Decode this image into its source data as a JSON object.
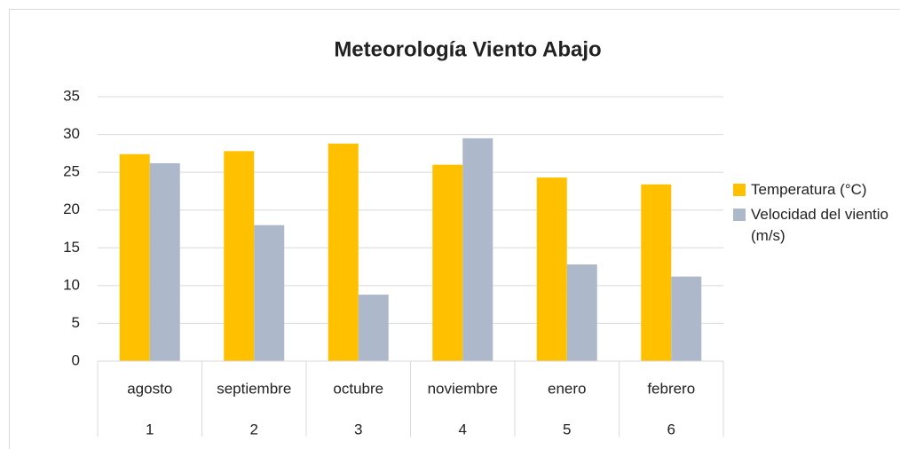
{
  "chart_data": {
    "type": "bar",
    "title": "Meteorología Viento Abajo",
    "categories": [
      "agosto",
      "septiembre",
      "octubre",
      "noviembre",
      "enero",
      "febrero"
    ],
    "category_numbers": [
      1,
      2,
      3,
      4,
      5,
      6
    ],
    "series": [
      {
        "name": "Temperatura (°C)",
        "color": "#FFC000",
        "values": [
          27.4,
          27.8,
          28.8,
          26.0,
          24.3,
          23.4
        ]
      },
      {
        "name": "Velocidad del vientio (m/s)",
        "color": "#ADB9CA",
        "values": [
          26.2,
          18.0,
          8.8,
          29.5,
          12.8,
          11.2
        ]
      }
    ],
    "ylim": [
      0,
      35
    ],
    "yticks": [
      0,
      5,
      10,
      15,
      20,
      25,
      30,
      35
    ],
    "grid": true,
    "legend": "right"
  }
}
